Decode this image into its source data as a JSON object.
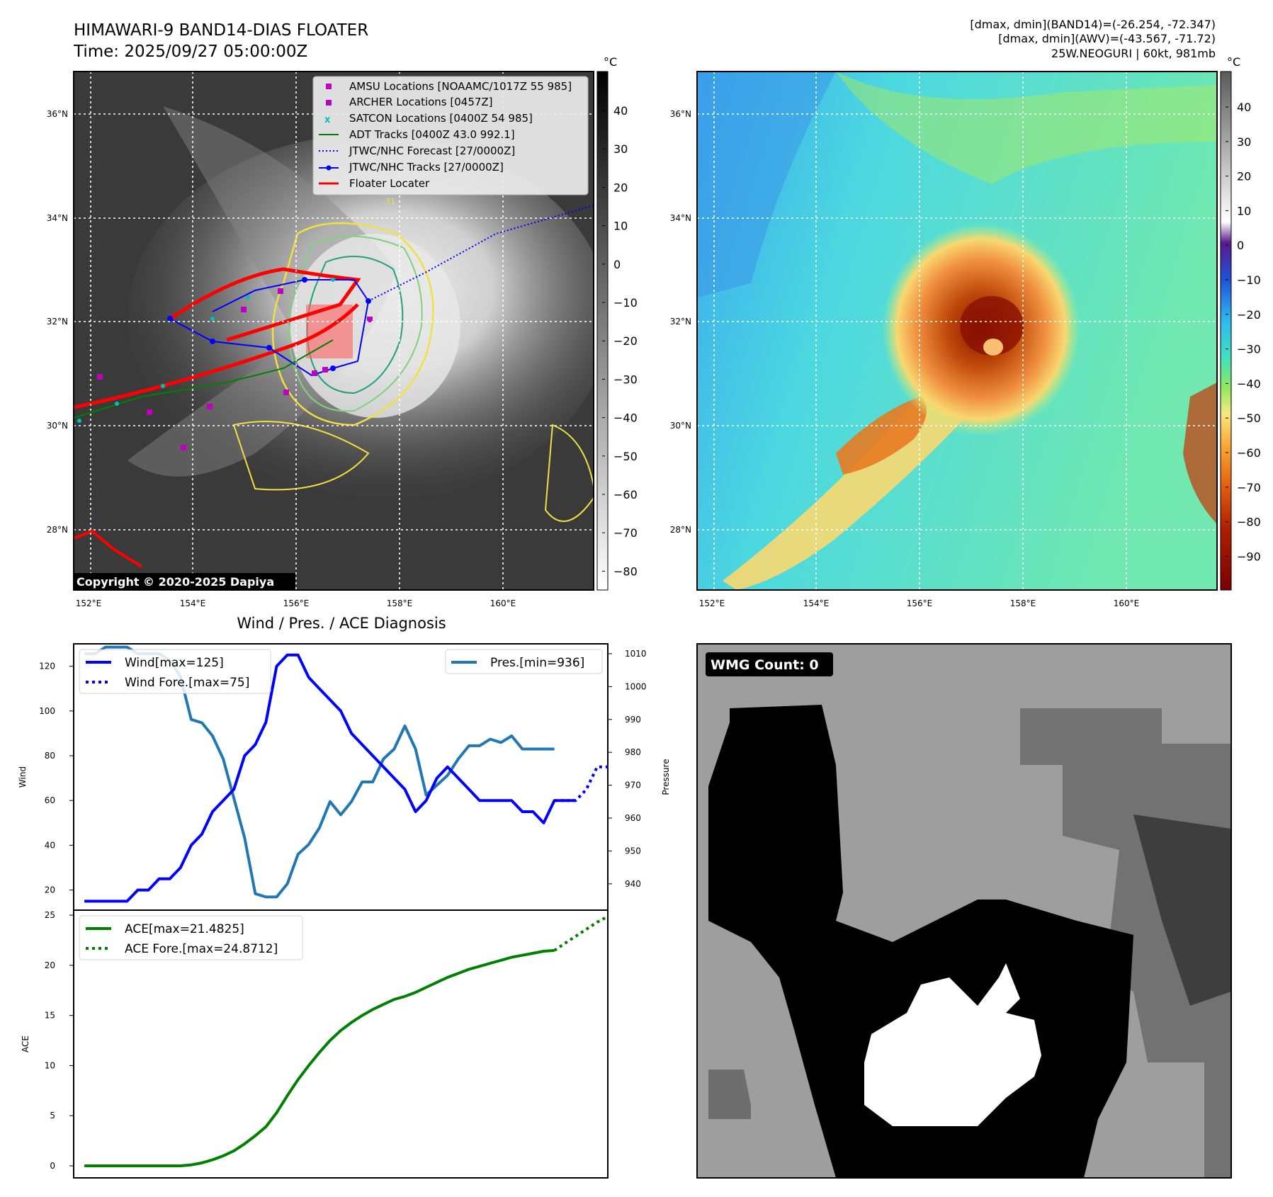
{
  "header": {
    "title_line1": "HIMAWARI-9 BAND14-DIAS FLOATER",
    "title_line2": "Time: 2025/09/27 05:00:00Z",
    "info_line1": "[dmax, dmin](BAND14)=(-26.254, -72.347)",
    "info_line2": "[dmax, dmin](AWV)=(-43.567, -71.72)",
    "info_line3": "25W.NEOGURI | 60kt, 981mb"
  },
  "map_panels": {
    "lat_labels": [
      "36°N",
      "34°N",
      "32°N",
      "30°N",
      "28°N"
    ],
    "lon_labels": [
      "152°E",
      "154°E",
      "156°E",
      "158°E",
      "160°E"
    ],
    "copyright": "Copyright © 2020-2025 Dapiya",
    "colorbar_unit": "°C",
    "colorbar1_ticks": [
      "40",
      "30",
      "20",
      "10",
      "0",
      "−10",
      "−20",
      "−30",
      "−40",
      "−50",
      "−60",
      "−70",
      "−80"
    ],
    "colorbar2_ticks": [
      "40",
      "30",
      "20",
      "10",
      "0",
      "−10",
      "−20",
      "−30",
      "−40",
      "−50",
      "−60",
      "−70",
      "−80",
      "−90"
    ],
    "contour_label": "-31",
    "legend": [
      {
        "label": "AMSU Locations [NOAAMC/1017Z 55 985]",
        "color": "#bf00bf"
      },
      {
        "label": "ARCHER Locations [0457Z]",
        "color": "#bf00bf"
      },
      {
        "label": "SATCON Locations [0400Z 54 985]",
        "color": "#00bfbf"
      },
      {
        "label": "ADT Tracks [0400Z 43.0 992.1]",
        "color": "#008000"
      },
      {
        "label": "JTWC/NHC Forecast [27/0000Z]",
        "color": "#0000ff"
      },
      {
        "label": "JTWC/NHC Tracks [27/0000Z]",
        "color": "#0000ff"
      },
      {
        "label": "Floater Locater",
        "color": "#ff0000"
      }
    ]
  },
  "wmg": {
    "label": "WMG Count: 0"
  },
  "chart_data": [
    {
      "type": "line",
      "title": "Wind / Pres. / ACE Diagnosis",
      "xlabel": "",
      "ylabel": "Wind",
      "ylabel_right": "Pressure",
      "ylim": [
        11,
        130
      ],
      "ylim_right": [
        932,
        1013
      ],
      "yticks": [
        20,
        40,
        60,
        80,
        100,
        120
      ],
      "yticks_right": [
        940,
        950,
        960,
        970,
        980,
        990,
        1000,
        1010
      ],
      "x_index_range": [
        -1,
        49
      ],
      "series": [
        {
          "name": "Wind[max=125]",
          "axis": "left",
          "color": "#0000ff",
          "style": "solid",
          "x": [
            0,
            1,
            2,
            3,
            4,
            5,
            6,
            7,
            8,
            9,
            10,
            11,
            12,
            13,
            14,
            15,
            16,
            17,
            18,
            19,
            20,
            21,
            22,
            23,
            24,
            25,
            26,
            27,
            28,
            29,
            30,
            31,
            32,
            33,
            34,
            35,
            36,
            37,
            38,
            39,
            40,
            41,
            42,
            43,
            44,
            45,
            46
          ],
          "values": [
            15,
            15,
            15,
            15,
            15,
            20,
            20,
            25,
            25,
            30,
            40,
            45,
            55,
            60,
            65,
            80,
            85,
            95,
            120,
            125,
            125,
            115,
            110,
            105,
            100,
            90,
            85,
            80,
            75,
            70,
            65,
            55,
            60,
            70,
            75,
            70,
            65,
            60,
            60,
            60,
            60,
            55,
            55,
            50,
            60,
            60,
            60
          ]
        },
        {
          "name": "Wind Fore.[max=75]",
          "axis": "left",
          "color": "#0000ff",
          "style": "dotted",
          "x": [
            44,
            45,
            46,
            47,
            48,
            49
          ],
          "values": [
            60,
            60,
            60,
            65,
            75,
            75
          ]
        },
        {
          "name": "Pres.[min=936]",
          "axis": "right",
          "color": "#1f77b4",
          "style": "solid",
          "x": [
            0,
            1,
            2,
            3,
            4,
            5,
            6,
            7,
            8,
            9,
            10,
            11,
            12,
            13,
            14,
            15,
            16,
            17,
            18,
            19,
            20,
            21,
            22,
            23,
            24,
            25,
            26,
            27,
            28,
            29,
            30,
            31,
            32,
            33,
            34,
            35,
            36,
            37,
            38,
            39,
            40,
            41,
            42,
            43,
            44
          ],
          "values": [
            1010,
            1010,
            1012,
            1012,
            1012,
            1010,
            1010,
            1010,
            1008,
            1003,
            990,
            989,
            985,
            978,
            966,
            954,
            937,
            936,
            936,
            940,
            949,
            952,
            957,
            965,
            961,
            965,
            971,
            971,
            978,
            981,
            988,
            981,
            967,
            970,
            973,
            978,
            982,
            982,
            984,
            983,
            985,
            981,
            981,
            981,
            981
          ]
        },
        {
          "name": "ACE[max=21.4825]",
          "axis": "ace",
          "color": "#008000",
          "style": "solid",
          "x": [
            0,
            1,
            2,
            3,
            4,
            5,
            6,
            7,
            8,
            9,
            10,
            11,
            12,
            13,
            14,
            15,
            16,
            17,
            18,
            19,
            20,
            21,
            22,
            23,
            24,
            25,
            26,
            27,
            28,
            29,
            30,
            31,
            32,
            33,
            34,
            35,
            36,
            37,
            38,
            39,
            40,
            41,
            42,
            43,
            44
          ],
          "values": [
            0,
            0,
            0,
            0,
            0,
            0,
            0,
            0,
            0,
            0,
            0.1,
            0.3,
            0.6,
            1.0,
            1.5,
            2.2,
            3.0,
            3.9,
            5.3,
            7.0,
            8.6,
            10.0,
            11.3,
            12.5,
            13.5,
            14.3,
            15.0,
            15.6,
            16.1,
            16.6,
            16.9,
            17.3,
            17.8,
            18.3,
            18.8,
            19.2,
            19.6,
            19.9,
            20.2,
            20.5,
            20.8,
            21.0,
            21.2,
            21.4,
            21.48
          ]
        },
        {
          "name": "ACE Fore.[max=24.8712]",
          "axis": "ace",
          "color": "#008000",
          "style": "dotted",
          "x": [
            44,
            45,
            46,
            47,
            48,
            49
          ],
          "values": [
            21.48,
            22.2,
            22.9,
            23.6,
            24.3,
            24.87
          ]
        }
      ],
      "ace_ylim": [
        -1.2,
        25.5
      ],
      "ace_yticks": [
        0,
        5,
        10,
        15,
        20,
        25
      ],
      "ace_ylabel": "ACE"
    }
  ]
}
